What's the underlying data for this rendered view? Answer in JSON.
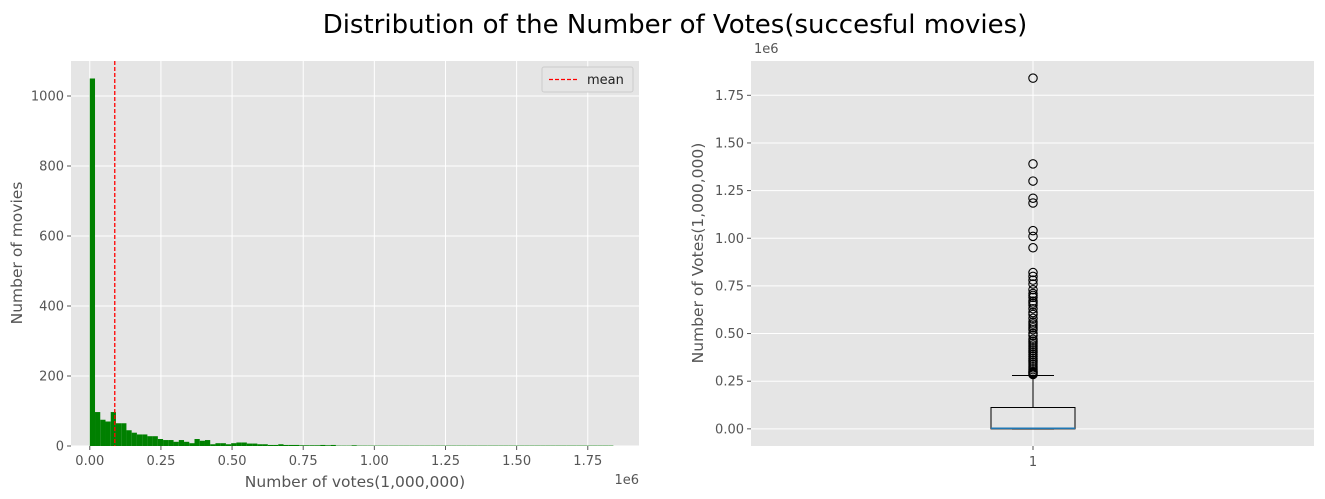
{
  "figure": {
    "title": "Distribution of the Number of Votes(succesful movies)"
  },
  "chart_data": [
    {
      "type": "histogram",
      "xlabel": "Number of votes(1,000,000)",
      "ylabel": "Number of movies",
      "x_offset_label": "1e6",
      "xlim": [
        -0.066,
        1.93
      ],
      "ylim": [
        0,
        1100
      ],
      "xticks": [
        0.0,
        0.25,
        0.5,
        0.75,
        1.0,
        1.25,
        1.5,
        1.75
      ],
      "xtick_labels": [
        "0.00",
        "0.25",
        "0.50",
        "0.75",
        "1.00",
        "1.25",
        "1.50",
        "1.75"
      ],
      "yticks": [
        0,
        200,
        400,
        600,
        800,
        1000
      ],
      "ytick_labels": [
        "0",
        "200",
        "400",
        "600",
        "800",
        "1000"
      ],
      "bin_start": 0.0,
      "bin_width": 0.0184,
      "counts": [
        1050,
        97,
        75,
        70,
        97,
        65,
        65,
        45,
        38,
        33,
        33,
        28,
        28,
        20,
        17,
        17,
        12,
        17,
        12,
        8,
        20,
        15,
        17,
        5,
        8,
        8,
        5,
        8,
        10,
        10,
        7,
        7,
        5,
        5,
        3,
        3,
        5,
        3,
        3,
        3,
        2,
        2,
        2,
        2,
        3,
        2,
        3,
        1,
        1,
        1,
        2,
        1,
        1,
        1,
        1,
        1,
        1,
        1,
        1,
        1,
        1,
        1,
        1,
        1,
        1,
        1,
        1,
        1,
        1,
        1,
        1,
        1,
        1,
        1,
        1,
        1,
        1,
        1,
        1,
        1,
        1,
        1,
        1,
        1,
        1,
        1,
        1,
        1,
        1,
        1,
        1,
        1,
        1,
        1,
        1,
        1,
        1,
        1,
        1,
        1
      ],
      "bar_color": "#008000",
      "mean": 0.0878,
      "mean_color": "#ff0000",
      "legend": [
        "mean"
      ],
      "legend_loc": "upper right",
      "grid": true
    },
    {
      "type": "boxplot",
      "ylabel": "Number of Votes(1,000,000)",
      "y_offset_label": "1e6",
      "xtick_labels": [
        "1"
      ],
      "ylim": [
        -0.09,
        1.93
      ],
      "yticks": [
        0.0,
        0.25,
        0.5,
        0.75,
        1.0,
        1.25,
        1.5,
        1.75
      ],
      "ytick_labels": [
        "0.00",
        "0.25",
        "0.50",
        "0.75",
        "1.00",
        "1.25",
        "1.50",
        "1.75"
      ],
      "min": 0.0,
      "q1": 0.0,
      "median": 0.003,
      "q3": 0.112,
      "whisker_low": 0.0,
      "whisker_high": 0.28,
      "median_color": "#1f77b4",
      "outliers": [
        1.84,
        1.39,
        1.3,
        1.21,
        1.185,
        1.04,
        1.01,
        0.95,
        0.82,
        0.8,
        0.78,
        0.76,
        0.73,
        0.71,
        0.7,
        0.69,
        0.67,
        0.66,
        0.65,
        0.63,
        0.61,
        0.6,
        0.58,
        0.56,
        0.55,
        0.54,
        0.53,
        0.52,
        0.5,
        0.49,
        0.47,
        0.46,
        0.45,
        0.44,
        0.43,
        0.42,
        0.41,
        0.4,
        0.39,
        0.38,
        0.37,
        0.36,
        0.35,
        0.34,
        0.33,
        0.32,
        0.31,
        0.3,
        0.295,
        0.29,
        0.285
      ],
      "grid": true
    }
  ]
}
